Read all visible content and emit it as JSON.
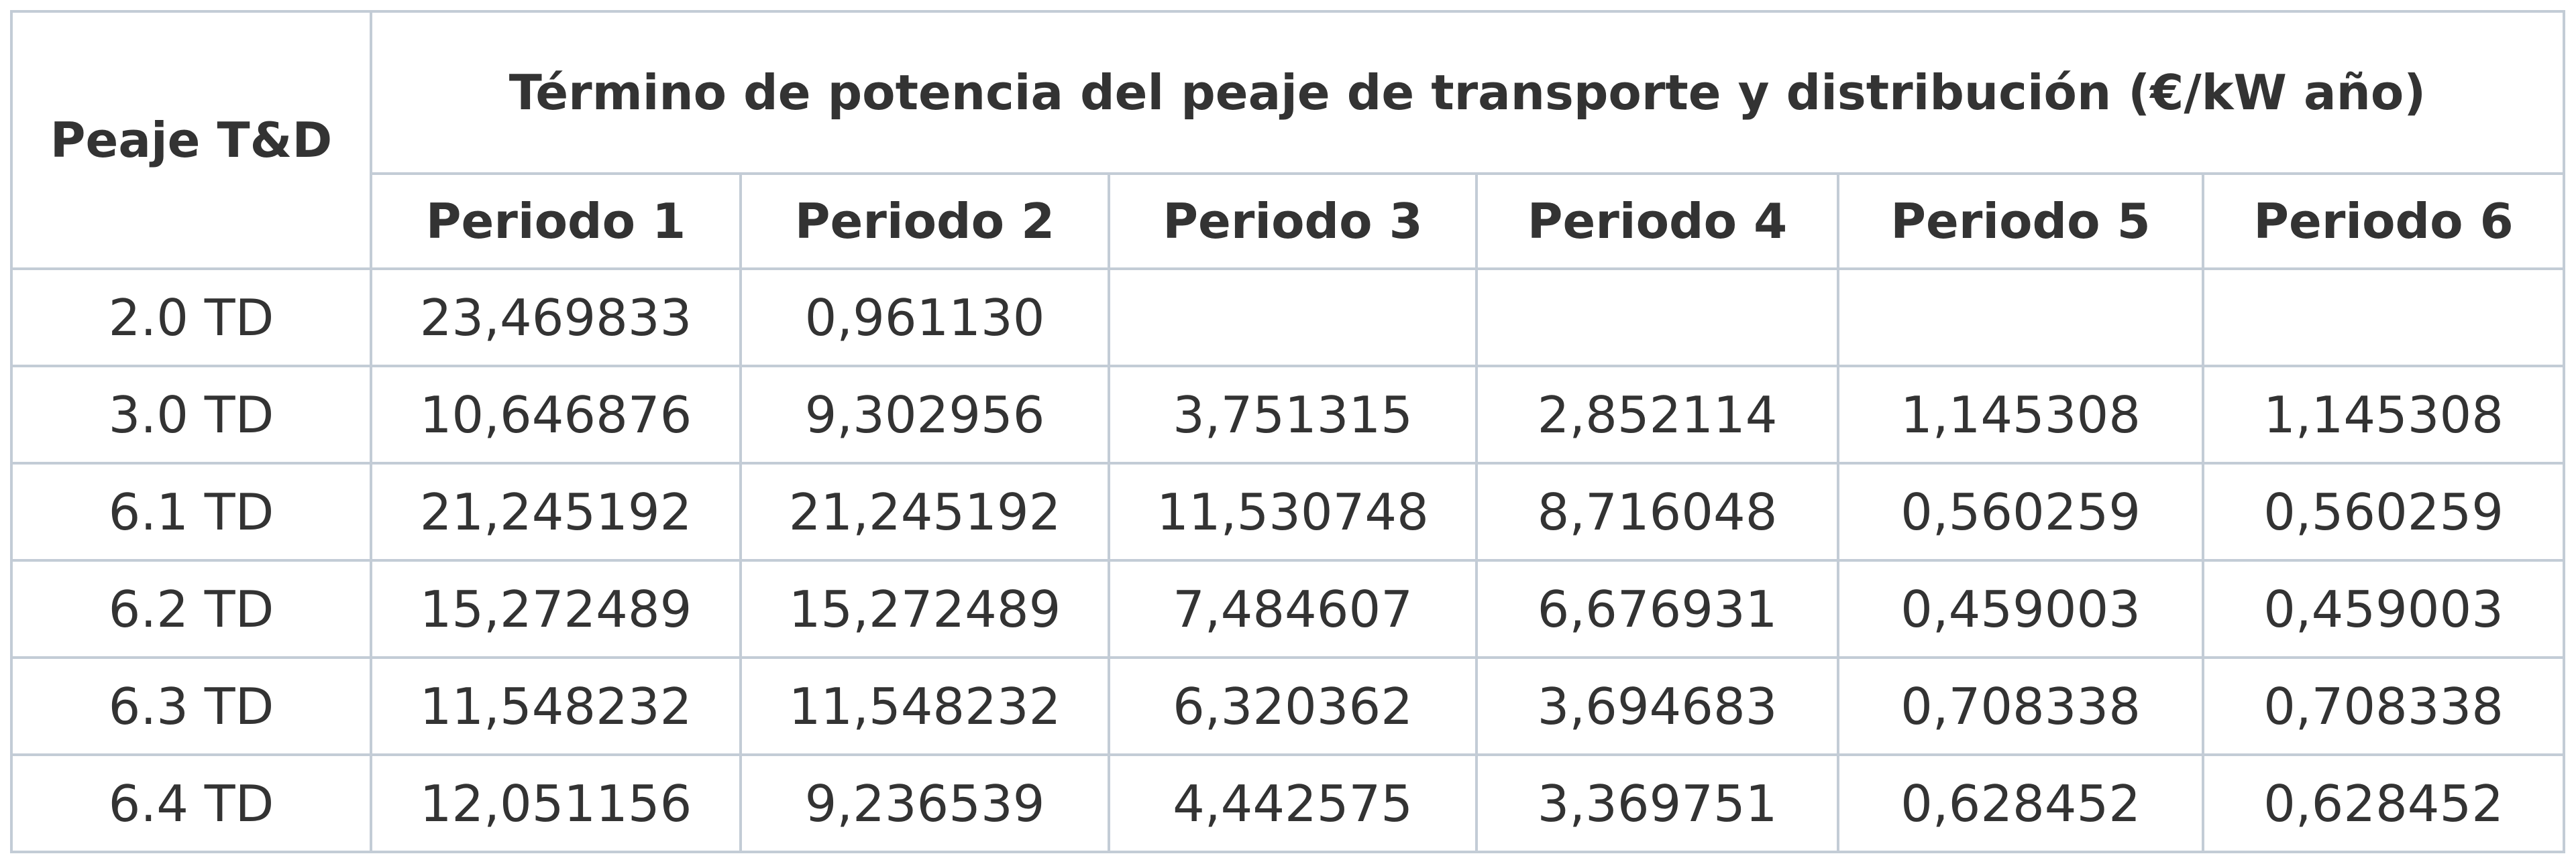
{
  "header": {
    "corner": "Peaje T&D",
    "title": "Término de potencia del peaje de transporte y distribución (€/kW año)",
    "periods": [
      "Periodo 1",
      "Periodo 2",
      "Periodo 3",
      "Periodo 4",
      "Periodo 5",
      "Periodo 6"
    ]
  },
  "table": {
    "rows": [
      {
        "label": "2.0 TD",
        "values": [
          "23,469833",
          "0,961130"
        ]
      },
      {
        "label": "3.0 TD",
        "values": [
          "10,646876",
          "9,302956",
          "3,751315",
          "2,852114",
          "1,145308",
          "1,145308"
        ]
      },
      {
        "label": "6.1 TD",
        "values": [
          "21,245192",
          "21,245192",
          "11,530748",
          "8,716048",
          "0,560259",
          "0,560259"
        ]
      },
      {
        "label": "6.2 TD",
        "values": [
          "15,272489",
          "15,272489",
          "7,484607",
          "6,676931",
          "0,459003",
          "0,459003"
        ]
      },
      {
        "label": "6.3 TD",
        "values": [
          "11,548232",
          "11,548232",
          "6,320362",
          "3,694683",
          "0,708338",
          "0,708338"
        ]
      },
      {
        "label": "6.4 TD",
        "values": [
          "12,051156",
          "9,236539",
          "4,442575",
          "3,369751",
          "0,628452",
          "0,628452"
        ]
      }
    ]
  }
}
